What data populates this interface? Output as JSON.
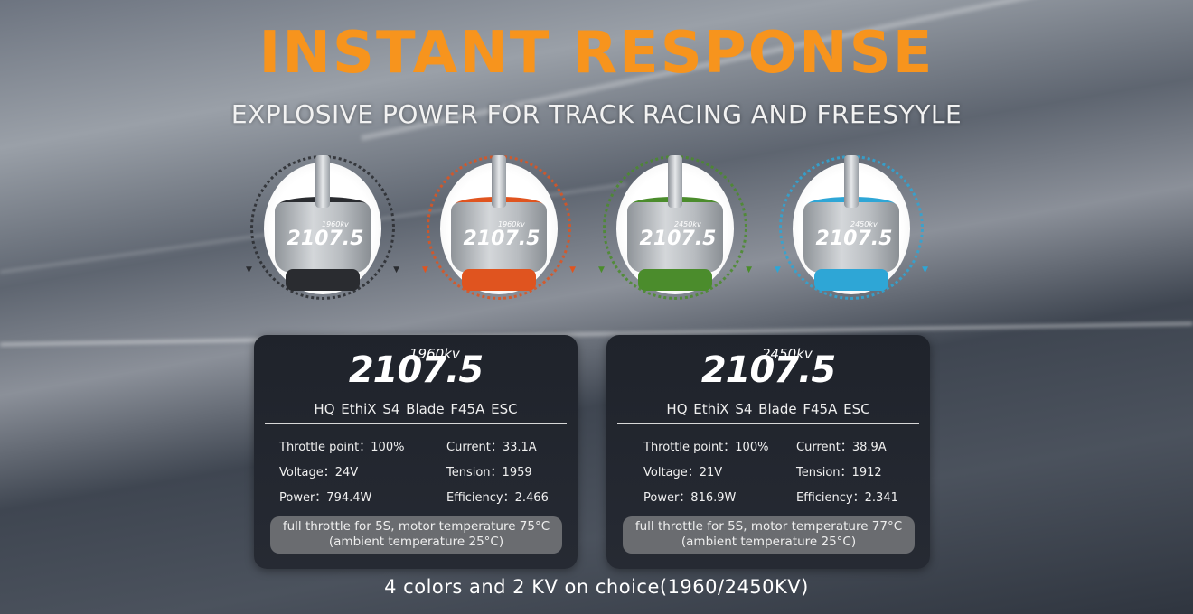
{
  "headline": "INSTANT RESPONSE",
  "subheadline": "EXPLOSIVE POWER FOR TRACK RACING AND FREESYYLE",
  "motors": [
    {
      "color": "black",
      "hex": "#2a2c30",
      "model": "2107.5",
      "kv": "1960kv"
    },
    {
      "color": "orange",
      "hex": "#e0541f",
      "model": "2107.5",
      "kv": "1960kv"
    },
    {
      "color": "green",
      "hex": "#4b8c2c",
      "model": "2107.5",
      "kv": "2450kv"
    },
    {
      "color": "blue",
      "hex": "#2ea6d6",
      "model": "2107.5",
      "kv": "2450kv"
    }
  ],
  "cards": [
    {
      "model": "2107.5",
      "kv": "1960kv",
      "config": "HQ EthiX S4  Blade    F45A ESC",
      "throttle": "Throttle point：100%",
      "current": "Current：33.1A",
      "voltage": "Voltage：24V",
      "tension": "Tension：1959",
      "power": "Power：794.4W",
      "efficiency": "Efficiency：2.466",
      "note1": "full throttle for 5S, motor temperature 75°C",
      "note2": "(ambient temperature 25°C)"
    },
    {
      "model": "2107.5",
      "kv": "2450kv",
      "config": "HQ EthiX S4  Blade    F45A ESC",
      "throttle": "Throttle point：100%",
      "current": "Current：38.9A",
      "voltage": "Voltage：21V",
      "tension": "Tension：1912",
      "power": "Power：816.9W",
      "efficiency": "Efficiency：2.341",
      "note1": "full throttle for 5S, motor temperature 77°C",
      "note2": "(ambient temperature 25°C)"
    }
  ],
  "footer": "4 colors and 2 KV  on choice(1960/2450KV)",
  "accent": "#f7941d"
}
